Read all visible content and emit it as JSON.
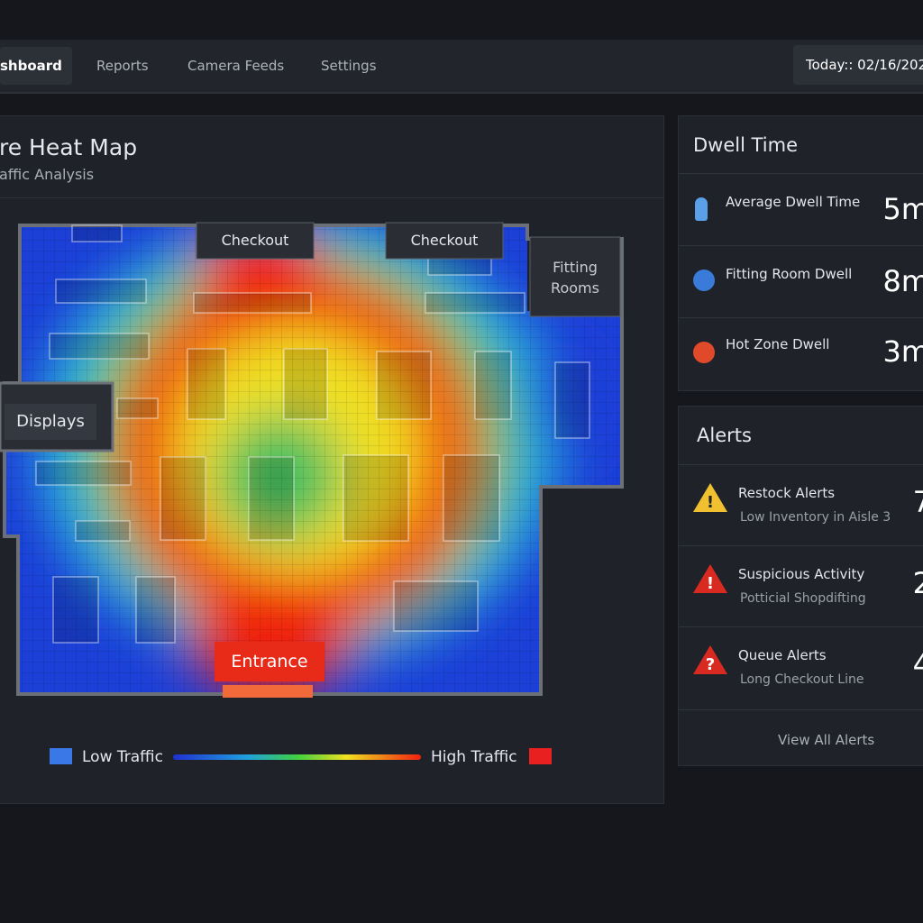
{
  "nav": {
    "items": [
      "shboard",
      "Reports",
      "Camera Feeds",
      "Settings"
    ],
    "date": "Today:: 02/16/202"
  },
  "heatmap": {
    "title": "re Heat Map",
    "subtitle": "affic Analysis",
    "zones": [
      "Checkout",
      "Checkout",
      "Fitting",
      "Rooms",
      "Displays",
      "Entrance"
    ],
    "legend_low": "Low Traffic",
    "legend_high": "High Traffic"
  },
  "dwell": {
    "title": "Dwell Time",
    "items": [
      {
        "label": "Average Dwell Time",
        "value": "5m"
      },
      {
        "label": "Fitting Room Dwell",
        "value": "8m"
      },
      {
        "label": "Hot Zone Dwell",
        "value": "3m"
      }
    ]
  },
  "alerts": {
    "title": "Alerts",
    "items": [
      {
        "title": "Restock Alerts",
        "detail": "Low Inventory in Aisle 3",
        "count": 7
      },
      {
        "title": "Suspicious Activity",
        "detail": "Potticial Shopdifting",
        "count": 2
      },
      {
        "title": "Queue Alerts",
        "detail": "Long Checkout Line",
        "count": 4
      }
    ],
    "view_all": "View All Alerts"
  }
}
